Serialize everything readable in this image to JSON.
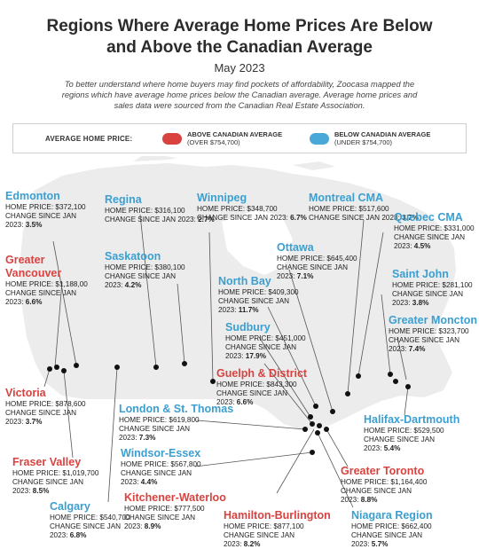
{
  "header": {
    "title_line1": "Regions Where Average Home Prices Are Below",
    "title_line2": "and Above the Canadian Average",
    "date": "May 2023",
    "intro_line1": "To better understand where home buyers may find pockets of affordability, Zoocasa mapped the",
    "intro_line2": "regions which have average home prices below the Canadian average. Average home prices and",
    "intro_line3": "sales data were sourced from the Canadian Real Estate Association."
  },
  "legend": {
    "label": "AVERAGE HOME PRICE:",
    "above_title": "ABOVE CANADIAN AVERAGE",
    "above_sub": "(OVER $754,700)",
    "below_title": "BELOW CANADIAN AVERAGE",
    "below_sub": "(UNDER $754,700)"
  },
  "colors": {
    "above": "#d9433f",
    "below": "#4aa8d8",
    "map_fill": "#ececec",
    "pin": "#111111"
  },
  "regions": [
    {
      "id": "edmonton",
      "name": "Edmonton",
      "price": "HOME PRICE: $372,100",
      "chg1": "CHANGE SINCE JAN",
      "chg2_pre": "2023: ",
      "chg2_val": "3.5%",
      "category": "below"
    },
    {
      "id": "regina",
      "name": "Regina",
      "price": "HOME PRICE: $316,100",
      "chg1": "",
      "chg2_pre": "CHANGE SINCE JAN 2023: ",
      "chg2_val": "2.7%",
      "category": "below"
    },
    {
      "id": "winnipeg",
      "name": "Winnipeg",
      "price": "HOME PRICE: $348,700",
      "chg1": "",
      "chg2_pre": "CHANGE SINCE JAN 2023: ",
      "chg2_val": "6.7%",
      "category": "below"
    },
    {
      "id": "montreal",
      "name": "Montreal CMA",
      "price": "HOME PRICE: $517,600",
      "chg1": "",
      "chg2_pre": "CHANGE SINCE JAN 2023: ",
      "chg2_val": "3.7%",
      "category": "below"
    },
    {
      "id": "quebec",
      "name": "Quebec CMA",
      "price": "HOME PRICE: $331,000",
      "chg1": "CHANGE SINCE JAN",
      "chg2_pre": "2023: ",
      "chg2_val": "4.5%",
      "category": "below"
    },
    {
      "id": "vancouver",
      "name": "Greater Vancouver",
      "price": "HOME PRICE: $1,188,00",
      "chg1": "CHANGE SINCE JAN",
      "chg2_pre": "2023: ",
      "chg2_val": "6.6%",
      "category": "above"
    },
    {
      "id": "saskatoon",
      "name": "Saskatoon",
      "price": "HOME PRICE: $380,100",
      "chg1": "CHANGE SINCE JAN",
      "chg2_pre": "2023: ",
      "chg2_val": "4.2%",
      "category": "below"
    },
    {
      "id": "ottawa",
      "name": "Ottawa",
      "price": "HOME PRICE: $645,400",
      "chg1": "CHANGE SINCE JAN",
      "chg2_pre": "2023: ",
      "chg2_val": "7.1%",
      "category": "below"
    },
    {
      "id": "northbay",
      "name": "North Bay",
      "price": "HOME PRICE: $409,300",
      "chg1": "CHANGE SINCE JAN",
      "chg2_pre": "2023: ",
      "chg2_val": "11.7%",
      "category": "below"
    },
    {
      "id": "saintjohn",
      "name": "Saint John",
      "price": "HOME PRICE: $281,100",
      "chg1": "CHANGE SINCE JAN",
      "chg2_pre": "2023: ",
      "chg2_val": "3.8%",
      "category": "below"
    },
    {
      "id": "moncton",
      "name": "Greater Moncton",
      "price": "HOME PRICE: $323,700",
      "chg1": "CHANGE SINCE JAN",
      "chg2_pre": "2023: ",
      "chg2_val": "7.4%",
      "category": "below"
    },
    {
      "id": "sudbury",
      "name": "Sudbury",
      "price": "HOME PRICE: $451,000",
      "chg1": "CHANGE SINCE JAN",
      "chg2_pre": "2023: ",
      "chg2_val": "17.9%",
      "category": "below"
    },
    {
      "id": "victoria",
      "name": "Victoria",
      "price": "HOME PRICE: $878,600",
      "chg1": "CHANGE SINCE JAN",
      "chg2_pre": "2023: ",
      "chg2_val": "3.7%",
      "category": "above"
    },
    {
      "id": "guelph",
      "name": "Guelph & District",
      "price": "HOME PRICE: $843,300",
      "chg1": "CHANGE SINCE JAN",
      "chg2_pre": "2023: ",
      "chg2_val": "6.6%",
      "category": "above"
    },
    {
      "id": "london",
      "name": "London & St. Thomas",
      "price": "HOME PRICE: $619,800",
      "chg1": "CHANGE SINCE JAN",
      "chg2_pre": "2023: ",
      "chg2_val": "7.3%",
      "category": "below"
    },
    {
      "id": "halifax",
      "name": "Halifax-Dartmouth",
      "price": "HOME PRICE: $529,500",
      "chg1": "CHANGE SINCE JAN",
      "chg2_pre": "2023: ",
      "chg2_val": "5.4%",
      "category": "below"
    },
    {
      "id": "windsor",
      "name": "Windsor-Essex",
      "price": "HOME PRICE: $567,800",
      "chg1": "CHANGE SINCE JAN",
      "chg2_pre": "2023: ",
      "chg2_val": "4.4%",
      "category": "below"
    },
    {
      "id": "fraser",
      "name": "Fraser Valley",
      "price": "HOME PRICE: $1,019,700",
      "chg1": "CHANGE SINCE JAN",
      "chg2_pre": "2023: ",
      "chg2_val": "8.5%",
      "category": "above"
    },
    {
      "id": "toronto",
      "name": "Greater Toronto",
      "price": "HOME PRICE: $1,164,400",
      "chg1": "CHANGE SINCE JAN",
      "chg2_pre": "2023: ",
      "chg2_val": "8.8%",
      "category": "above"
    },
    {
      "id": "kitchener",
      "name": "Kitchener-Waterloo",
      "price": "HOME PRICE: $777,500",
      "chg1": "CHANGE SINCE JAN",
      "chg2_pre": "2023: ",
      "chg2_val": "8.9%",
      "category": "above"
    },
    {
      "id": "calgary",
      "name": "Calgary",
      "price": "HOME PRICE: $540,700",
      "chg1": "CHANGE SINCE JAN",
      "chg2_pre": "2023: ",
      "chg2_val": "6.8%",
      "category": "below"
    },
    {
      "id": "hamilton",
      "name": "Hamilton-Burlington",
      "price": "HOME PRICE: $877,100",
      "chg1": "CHANGE SINCE JAN",
      "chg2_pre": "2023: ",
      "chg2_val": "8.2%",
      "category": "above"
    },
    {
      "id": "niagara",
      "name": "Niagara Region",
      "price": "HOME PRICE: $662,400",
      "chg1": "CHANGE SINCE JAN",
      "chg2_pre": "2023: ",
      "chg2_val": "5.7%",
      "category": "below"
    }
  ]
}
